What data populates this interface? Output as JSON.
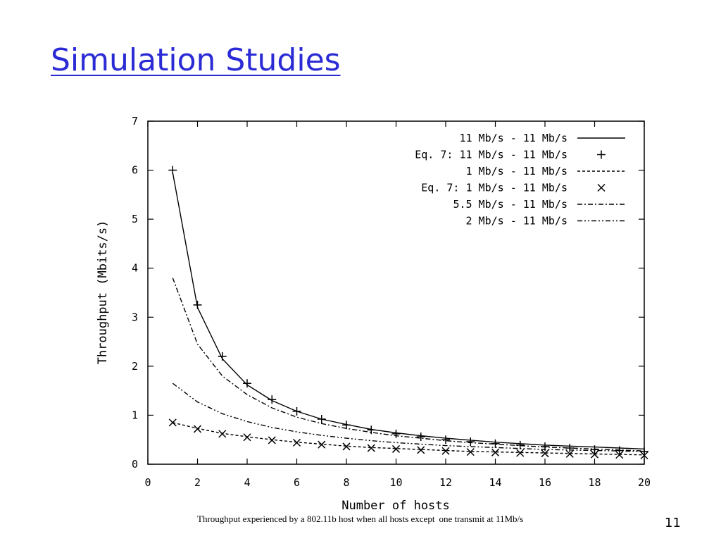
{
  "slide": {
    "title": "Simulation Studies",
    "caption_part1": "Throughput experienced by a 802.11b host when all hosts except",
    "caption_part2": "one transmit at 11Mb/s",
    "page_number": "11",
    "title_color": "#2b2bd6"
  },
  "chart_data": {
    "type": "line",
    "title": "",
    "xlabel": "Number of hosts",
    "ylabel": "Throughput (Mbits/s)",
    "xlim": [
      0,
      20
    ],
    "ylim": [
      0,
      7
    ],
    "xticks": [
      0,
      2,
      4,
      6,
      8,
      10,
      12,
      14,
      16,
      18,
      20
    ],
    "yticks": [
      0,
      1,
      2,
      3,
      4,
      5,
      6,
      7
    ],
    "grid": false,
    "legend_position": "top-right",
    "x": [
      1,
      2,
      3,
      4,
      5,
      6,
      7,
      8,
      9,
      10,
      11,
      12,
      13,
      14,
      15,
      16,
      17,
      18,
      19,
      20
    ],
    "series": [
      {
        "name": "11 Mb/s - 11 Mb/s",
        "style": "solid",
        "marker": "none",
        "values": [
          5.95,
          3.2,
          2.15,
          1.62,
          1.3,
          1.08,
          0.92,
          0.81,
          0.71,
          0.64,
          0.58,
          0.53,
          0.49,
          0.45,
          0.42,
          0.39,
          0.37,
          0.35,
          0.33,
          0.31
        ]
      },
      {
        "name": "Eq. 7: 11 Mb/s - 11 Mb/s",
        "style": "none",
        "marker": "plus",
        "values": [
          6.0,
          3.25,
          2.2,
          1.65,
          1.32,
          1.08,
          0.92,
          0.8,
          0.7,
          0.62,
          0.56,
          0.5,
          0.46,
          0.42,
          0.39,
          0.36,
          0.33,
          0.3,
          0.28,
          0.26
        ]
      },
      {
        "name": "1 Mb/s - 11 Mb/s",
        "style": "dashed",
        "marker": "none",
        "values": [
          0.85,
          0.73,
          0.63,
          0.56,
          0.5,
          0.45,
          0.41,
          0.37,
          0.34,
          0.32,
          0.3,
          0.28,
          0.26,
          0.25,
          0.24,
          0.23,
          0.22,
          0.21,
          0.2,
          0.19
        ]
      },
      {
        "name": "Eq. 7: 1 Mb/s - 11 Mb/s",
        "style": "none",
        "marker": "cross",
        "values": [
          0.85,
          0.72,
          0.62,
          0.55,
          0.49,
          0.44,
          0.4,
          0.36,
          0.33,
          0.31,
          0.29,
          0.27,
          0.25,
          0.24,
          0.23,
          0.22,
          0.21,
          0.2,
          0.19,
          0.18
        ]
      },
      {
        "name": "5.5 Mb/s - 11 Mb/s",
        "style": "dashdot",
        "marker": "none",
        "values": [
          3.8,
          2.45,
          1.8,
          1.42,
          1.15,
          0.96,
          0.83,
          0.73,
          0.65,
          0.58,
          0.53,
          0.48,
          0.44,
          0.41,
          0.38,
          0.35,
          0.33,
          0.31,
          0.29,
          0.27
        ]
      },
      {
        "name": "2 Mb/s - 11 Mb/s",
        "style": "dashdotdot",
        "marker": "none",
        "values": [
          1.65,
          1.27,
          1.03,
          0.87,
          0.75,
          0.66,
          0.59,
          0.53,
          0.48,
          0.44,
          0.41,
          0.38,
          0.36,
          0.34,
          0.32,
          0.3,
          0.29,
          0.28,
          0.27,
          0.26
        ]
      }
    ]
  }
}
